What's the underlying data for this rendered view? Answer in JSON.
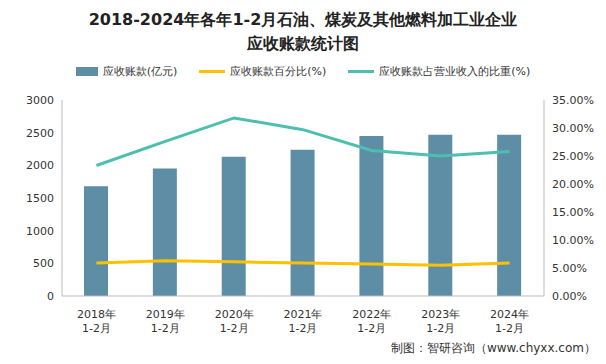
{
  "chart_data": {
    "type": "bar",
    "title": "2018-2024年各年1-2月石油、煤炭及其他燃料加工业企业\n应收账款统计图",
    "categories": [
      "2018年\n1-2月",
      "2019年\n1-2月",
      "2020年\n1-2月",
      "2021年\n1-2月",
      "2022年\n1-2月",
      "2023年\n1-2月",
      "2024年\n1-2月"
    ],
    "series": [
      {
        "name": "应收账款(亿元)",
        "type": "bar",
        "color": "#5e8ea6",
        "values": [
          1680,
          1950,
          2130,
          2240,
          2450,
          2470,
          2470
        ]
      },
      {
        "name": "应收账款百分比(%)",
        "type": "line",
        "axis": "y2",
        "color": "#ffc000",
        "marker": "none",
        "values": [
          5.9,
          6.3,
          6.1,
          5.9,
          5.7,
          5.5,
          5.9
        ]
      },
      {
        "name": "应收账款占营业收入的比重(%)",
        "type": "line",
        "axis": "y2",
        "color": "#4dbfb0",
        "marker": "none",
        "values": [
          23.3,
          27.6,
          31.8,
          29.7,
          26.0,
          25.0,
          25.8
        ]
      }
    ],
    "ylim": [
      0,
      3000
    ],
    "yticks": [
      0,
      500,
      1000,
      1500,
      2000,
      2500,
      3000
    ],
    "y2lim": [
      0,
      35
    ],
    "y2ticks": [
      {
        "value": 0,
        "label": "0.00%"
      },
      {
        "value": 5,
        "label": "5.00%"
      },
      {
        "value": 10,
        "label": "10.00%"
      },
      {
        "value": 15,
        "label": "15.00%"
      },
      {
        "value": 20,
        "label": "20.00%"
      },
      {
        "value": 25,
        "label": "25.00%"
      },
      {
        "value": 30,
        "label": "30.00%"
      },
      {
        "value": 35,
        "label": "35.00%"
      }
    ],
    "grid": false,
    "legend": "top",
    "source": "制图：智研咨询（www.chyxx.com）"
  }
}
